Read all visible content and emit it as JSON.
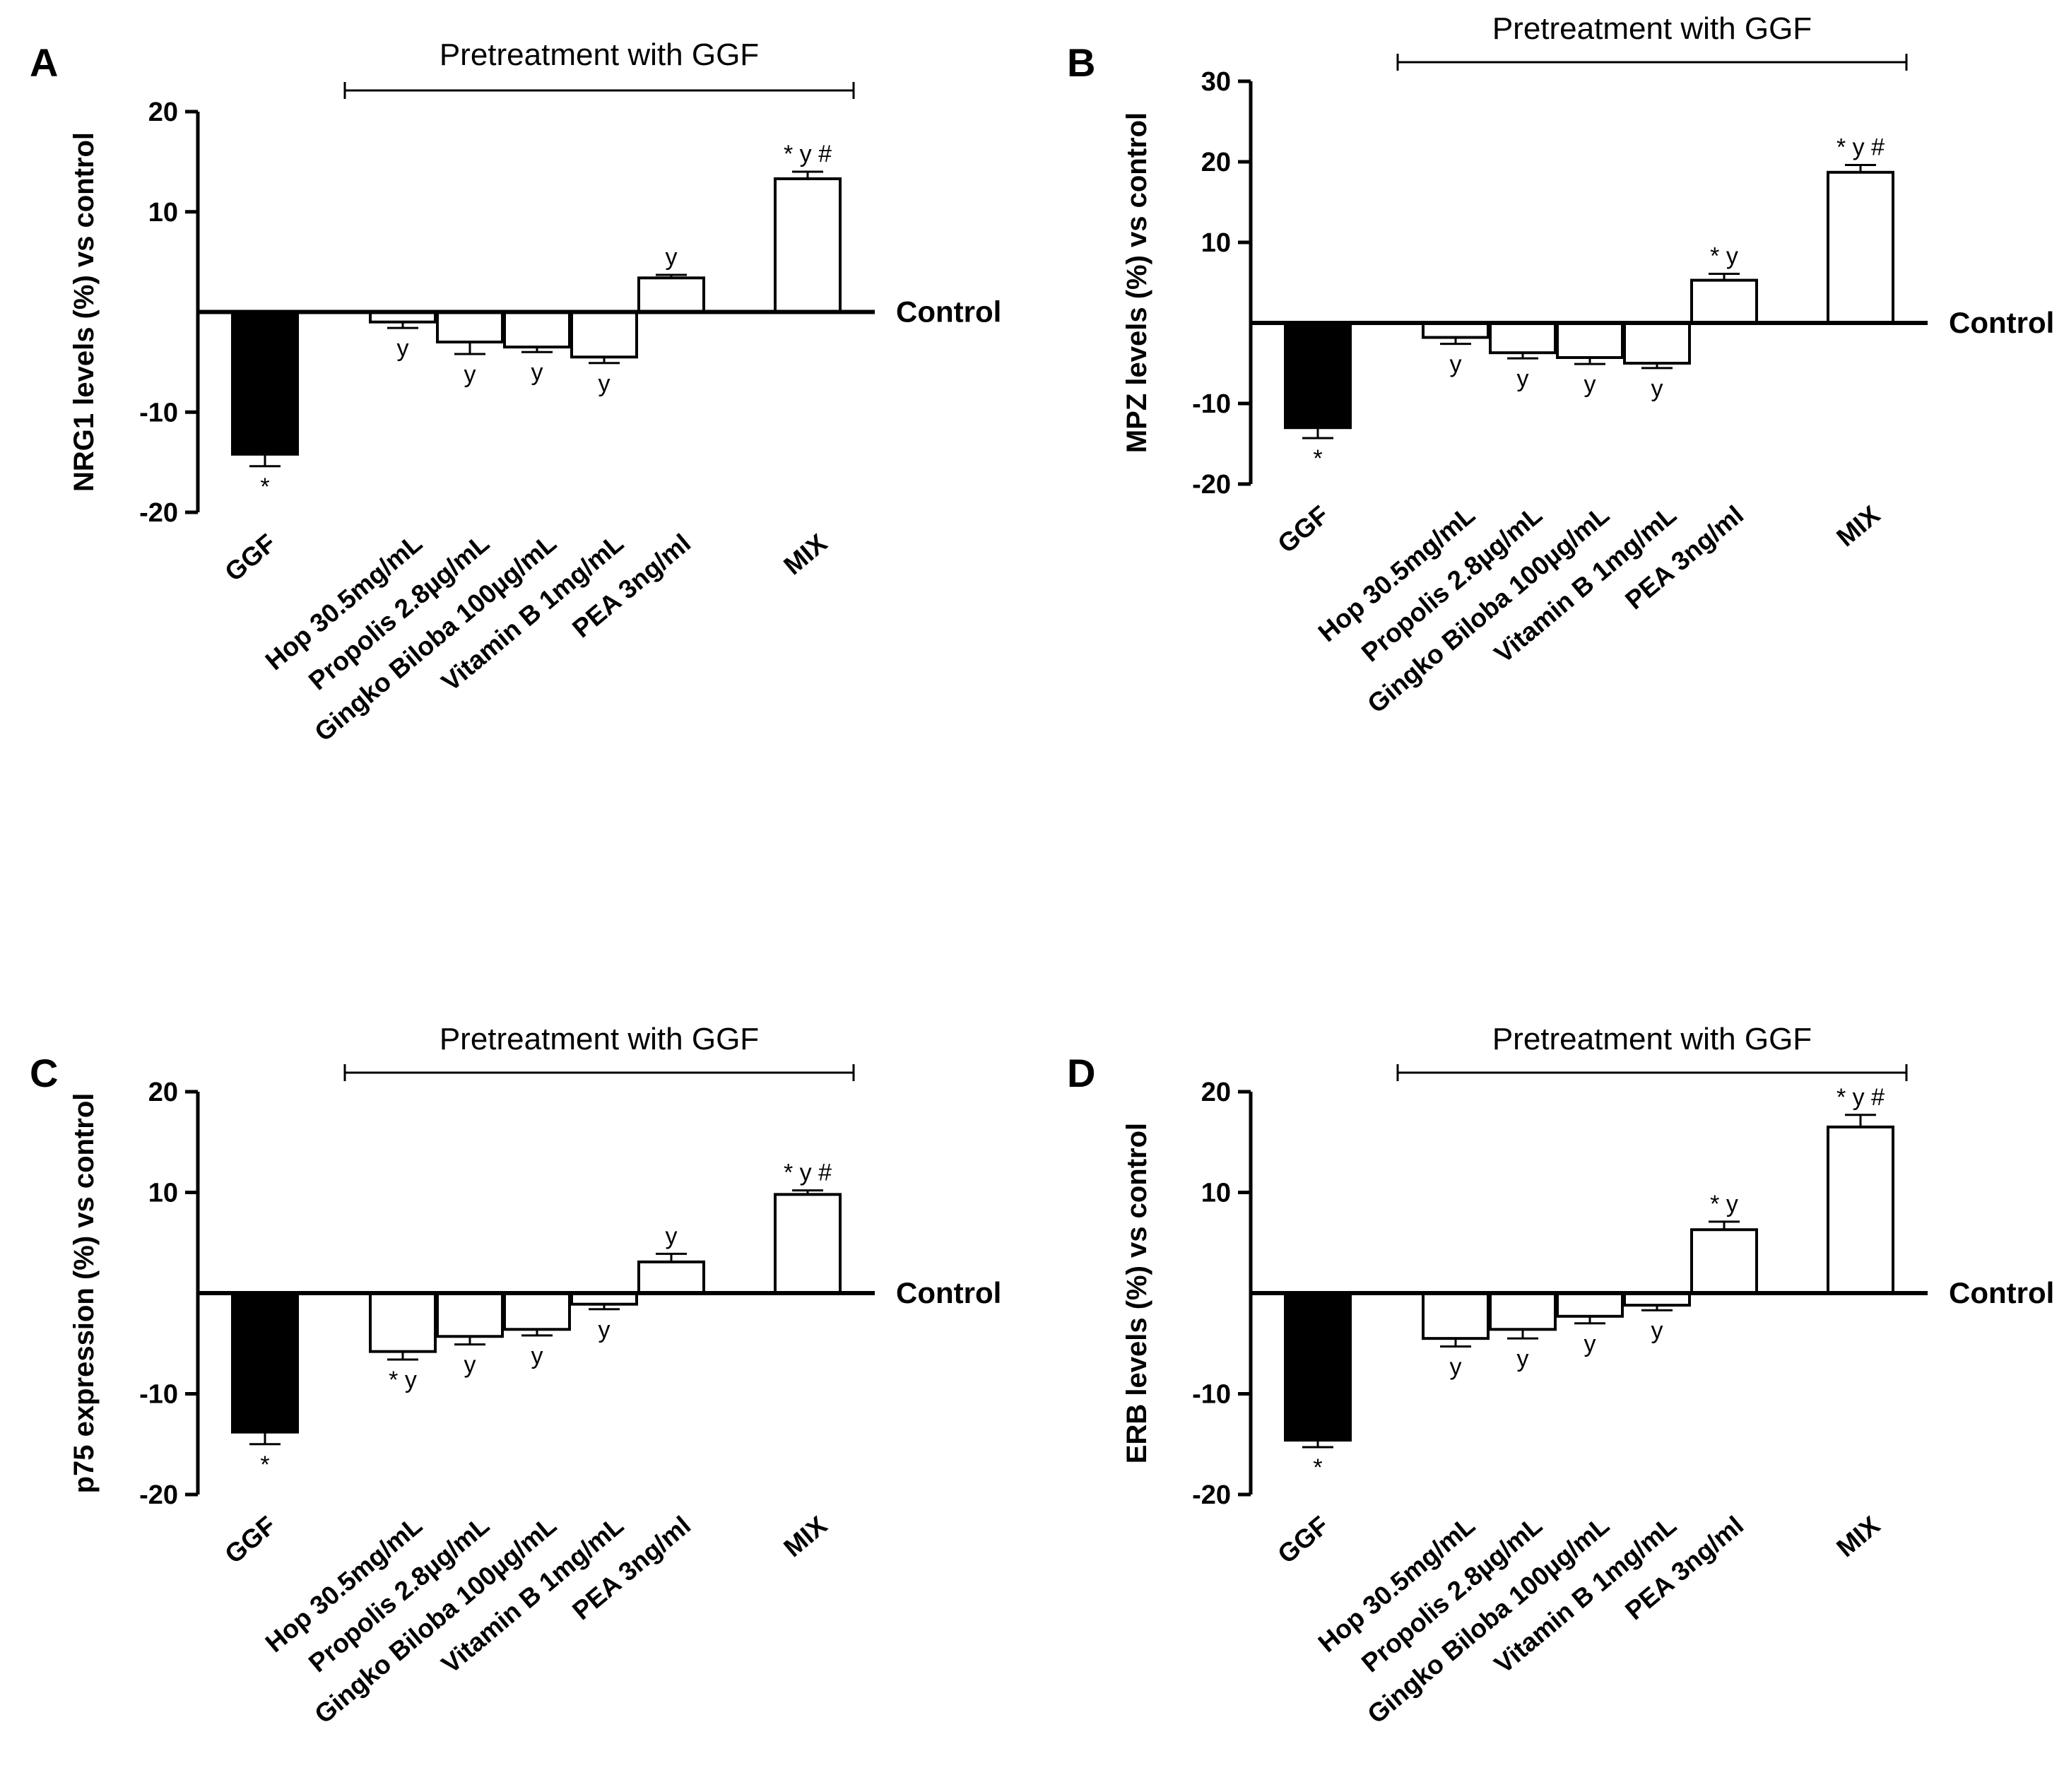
{
  "figure": {
    "panels_description": "Four bar charts of marker levels vs control",
    "bracket_label": "Pretreatment with GGF",
    "baseline_label": "Control",
    "colors": {
      "ggf_bar": "#000000",
      "treatment_bar": "#ffffff",
      "axis": "#000000"
    }
  },
  "chart_data": [
    {
      "panel": "A",
      "type": "bar",
      "title": "",
      "xlabel": "",
      "ylabel": "NRG1 levels (%) vs control",
      "ylim": [
        -20,
        20
      ],
      "yticks": [
        20,
        10,
        -10,
        -20
      ],
      "categories": [
        "GGF",
        "Hop 30.5mg/mL",
        "Propolis 2.8µg/mL",
        "Gingko Biloba 100µg/mL",
        "Vitamin B 1mg/mL",
        "PEA 3ng/ml",
        "MIX"
      ],
      "values": [
        -14.2,
        -1.0,
        -3.0,
        -3.5,
        -4.5,
        3.4,
        13.3
      ],
      "errors": [
        1.2,
        0.6,
        1.2,
        0.5,
        0.6,
        0.3,
        0.7
      ],
      "annotations": [
        "*",
        "y",
        "y",
        "y",
        "y",
        "y",
        "* y #"
      ]
    },
    {
      "panel": "B",
      "type": "bar",
      "title": "",
      "xlabel": "",
      "ylabel": "MPZ levels (%) vs control",
      "ylim": [
        -20,
        30
      ],
      "yticks": [
        30,
        20,
        10,
        -10,
        -20
      ],
      "categories": [
        "GGF",
        "Hop 30.5mg/mL",
        "Propolis 2.8µg/mL",
        "Gingko Biloba 100µg/mL",
        "Vitamin B 1mg/mL",
        "PEA 3ng/ml",
        "MIX"
      ],
      "values": [
        -13.0,
        -1.8,
        -3.7,
        -4.3,
        -5.0,
        5.3,
        18.7
      ],
      "errors": [
        1.3,
        0.8,
        0.7,
        0.8,
        0.6,
        0.8,
        0.9
      ],
      "annotations": [
        "*",
        "y",
        "y",
        "y",
        "y",
        "* y",
        "* y #"
      ]
    },
    {
      "panel": "C",
      "type": "bar",
      "title": "",
      "xlabel": "",
      "ylabel": "p75 expression (%) vs control",
      "ylim": [
        -20,
        20
      ],
      "yticks": [
        20,
        10,
        -10,
        -20
      ],
      "categories": [
        "GGF",
        "Hop 30.5mg/mL",
        "Propolis 2.8µg/mL",
        "Gingko Biloba 100µg/mL",
        "Vitamin B 1mg/mL",
        "PEA 3ng/ml",
        "MIX"
      ],
      "values": [
        -13.8,
        -5.8,
        -4.3,
        -3.6,
        -1.1,
        3.1,
        9.8
      ],
      "errors": [
        1.2,
        0.8,
        0.8,
        0.6,
        0.5,
        0.8,
        0.4
      ],
      "annotations": [
        "*",
        "* y",
        "y",
        "y",
        "y",
        "y",
        "* y #"
      ]
    },
    {
      "panel": "D",
      "type": "bar",
      "title": "",
      "xlabel": "",
      "ylabel": "ERB levels (%) vs control",
      "ylim": [
        -20,
        20
      ],
      "yticks": [
        20,
        10,
        -10,
        -20
      ],
      "categories": [
        "GGF",
        "Hop 30.5mg/mL",
        "Propolis 2.8µg/mL",
        "Gingko Biloba 100µg/mL",
        "Vitamin B 1mg/mL",
        "PEA 3ng/ml",
        "MIX"
      ],
      "values": [
        -14.6,
        -4.5,
        -3.6,
        -2.3,
        -1.2,
        6.3,
        16.5
      ],
      "errors": [
        0.7,
        0.8,
        0.9,
        0.7,
        0.5,
        0.8,
        1.2
      ],
      "annotations": [
        "*",
        "y",
        "y",
        "y",
        "y",
        "* y",
        "* y #"
      ]
    }
  ]
}
